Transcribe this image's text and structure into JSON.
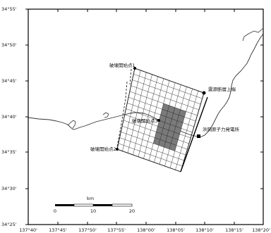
{
  "axes": {
    "y_ticks": [
      "34°55'",
      "34°50'",
      "34°45'",
      "34°40'",
      "34°35'",
      "34°30'",
      "34°25'"
    ],
    "x_ticks": [
      "137°40'",
      "137°45'",
      "137°50'",
      "137°55'",
      "138°00'",
      "138°05'",
      "138°10'",
      "138°15'",
      "138°20'"
    ]
  },
  "labels": {
    "rupture_start_1": "破壊開始点1",
    "rupture_start_2": "破壊開始点2",
    "rupture_start_3": "破壊開始点3",
    "source_fault_top": "震源断層上端",
    "nuclear_plant": "浜岡原子力発電所"
  },
  "scale_bar": {
    "unit": "km",
    "ticks": [
      "0",
      "10",
      "20"
    ]
  },
  "colors": {
    "asperity": "#7a7a7a",
    "grid": "#222222",
    "coast": "#333333"
  }
}
